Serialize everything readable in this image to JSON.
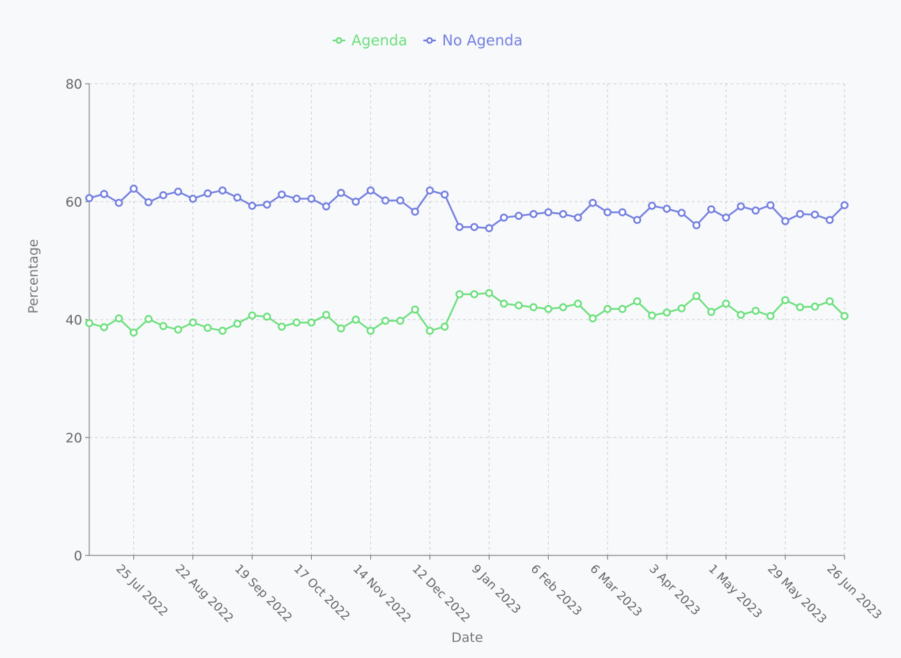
{
  "chart_data": {
    "type": "line",
    "title": "",
    "xlabel": "Date",
    "ylabel": "Percentage",
    "ylim": [
      0,
      80
    ],
    "yticks": [
      0,
      20,
      40,
      60,
      80
    ],
    "grid": true,
    "legend_position": "top-center",
    "x": [
      "2022-07-04",
      "2022-07-11",
      "2022-07-18",
      "2022-07-25",
      "2022-08-01",
      "2022-08-08",
      "2022-08-15",
      "2022-08-22",
      "2022-08-29",
      "2022-09-05",
      "2022-09-12",
      "2022-09-19",
      "2022-09-26",
      "2022-10-03",
      "2022-10-10",
      "2022-10-17",
      "2022-10-24",
      "2022-10-31",
      "2022-11-07",
      "2022-11-14",
      "2022-11-21",
      "2022-11-28",
      "2022-12-05",
      "2022-12-12",
      "2022-12-19",
      "2022-12-26",
      "2023-01-02",
      "2023-01-09",
      "2023-01-16",
      "2023-01-23",
      "2023-01-30",
      "2023-02-06",
      "2023-02-13",
      "2023-02-20",
      "2023-02-27",
      "2023-03-06",
      "2023-03-13",
      "2023-03-20",
      "2023-03-27",
      "2023-04-03",
      "2023-04-10",
      "2023-04-17",
      "2023-04-24",
      "2023-05-01",
      "2023-05-08",
      "2023-05-15",
      "2023-05-22",
      "2023-05-29",
      "2023-06-05",
      "2023-06-12",
      "2023-06-19",
      "2023-06-26"
    ],
    "xticks": [
      {
        "index": 3,
        "label": "25 Jul 2022"
      },
      {
        "index": 7,
        "label": "22 Aug 2022"
      },
      {
        "index": 11,
        "label": "19 Sep 2022"
      },
      {
        "index": 15,
        "label": "17 Oct 2022"
      },
      {
        "index": 19,
        "label": "14 Nov 2022"
      },
      {
        "index": 23,
        "label": "12 Dec 2022"
      },
      {
        "index": 27,
        "label": "9 Jan 2023"
      },
      {
        "index": 31,
        "label": "6 Feb 2023"
      },
      {
        "index": 35,
        "label": "6 Mar 2023"
      },
      {
        "index": 39,
        "label": "3 Apr 2023"
      },
      {
        "index": 43,
        "label": "1 May 2023"
      },
      {
        "index": 47,
        "label": "29 May 2023"
      },
      {
        "index": 51,
        "label": "26 Jun 2023"
      }
    ],
    "series": [
      {
        "name": "Agenda",
        "color": "#6ee07f",
        "values": [
          39.4,
          38.7,
          40.2,
          37.8,
          40.1,
          38.9,
          38.3,
          39.5,
          38.6,
          38.1,
          39.3,
          40.7,
          40.5,
          38.8,
          39.5,
          39.5,
          40.8,
          38.5,
          40.0,
          38.1,
          39.8,
          39.8,
          41.7,
          38.1,
          38.8,
          44.3,
          44.3,
          44.5,
          42.7,
          42.4,
          42.1,
          41.8,
          42.1,
          42.7,
          40.2,
          41.8,
          41.8,
          43.1,
          40.7,
          41.2,
          41.9,
          44.0,
          41.3,
          42.7,
          40.8,
          41.5,
          40.6,
          43.3,
          42.1,
          42.2,
          43.1,
          40.6
        ]
      },
      {
        "name": "No Agenda",
        "color": "#7480e0",
        "values": [
          60.6,
          61.3,
          59.8,
          62.2,
          59.9,
          61.1,
          61.7,
          60.5,
          61.4,
          61.9,
          60.7,
          59.3,
          59.5,
          61.2,
          60.5,
          60.5,
          59.2,
          61.5,
          60.0,
          61.9,
          60.2,
          60.2,
          58.3,
          61.9,
          61.2,
          55.7,
          55.7,
          55.5,
          57.3,
          57.6,
          57.9,
          58.2,
          57.9,
          57.3,
          59.8,
          58.2,
          58.2,
          56.9,
          59.3,
          58.8,
          58.1,
          56.0,
          58.7,
          57.3,
          59.2,
          58.5,
          59.4,
          56.7,
          57.9,
          57.8,
          56.9,
          59.4
        ]
      }
    ]
  }
}
